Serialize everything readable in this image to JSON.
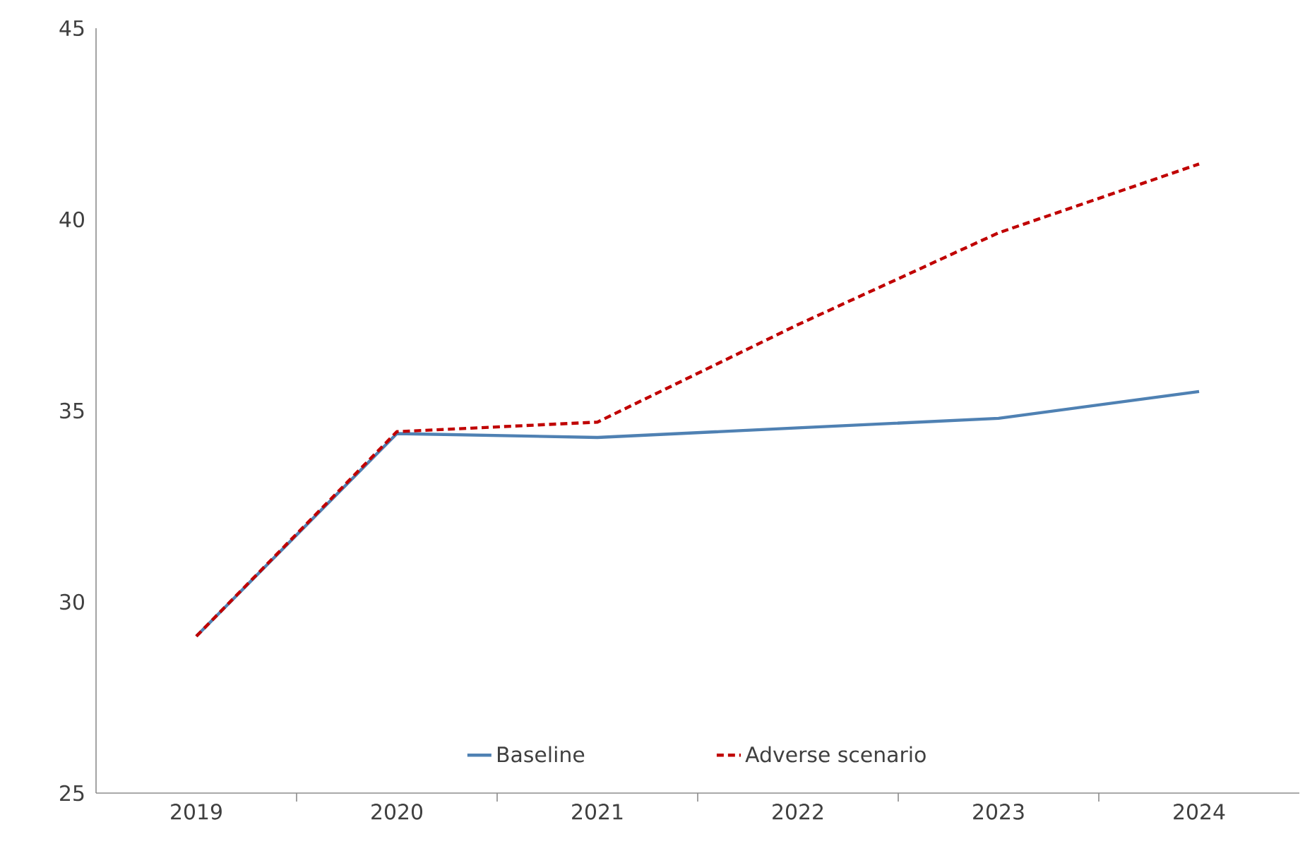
{
  "chart_data": {
    "type": "line",
    "categories": [
      "2019",
      "2020",
      "2021",
      "2022",
      "2023",
      "2024"
    ],
    "series": [
      {
        "name": "Baseline",
        "color": "#4f81b3",
        "line_style": "solid",
        "values": [
          29.1,
          34.4,
          34.3,
          34.55,
          34.8,
          35.5
        ]
      },
      {
        "name": "Adverse scenario",
        "color": "#c00000",
        "line_style": "dashed",
        "values": [
          29.1,
          34.45,
          34.7,
          37.25,
          39.65,
          41.45
        ]
      }
    ],
    "ylim": [
      25,
      45
    ],
    "yticks": [
      25,
      30,
      35,
      40,
      45
    ],
    "grid": false,
    "legend": "bottom",
    "marker": "none"
  }
}
